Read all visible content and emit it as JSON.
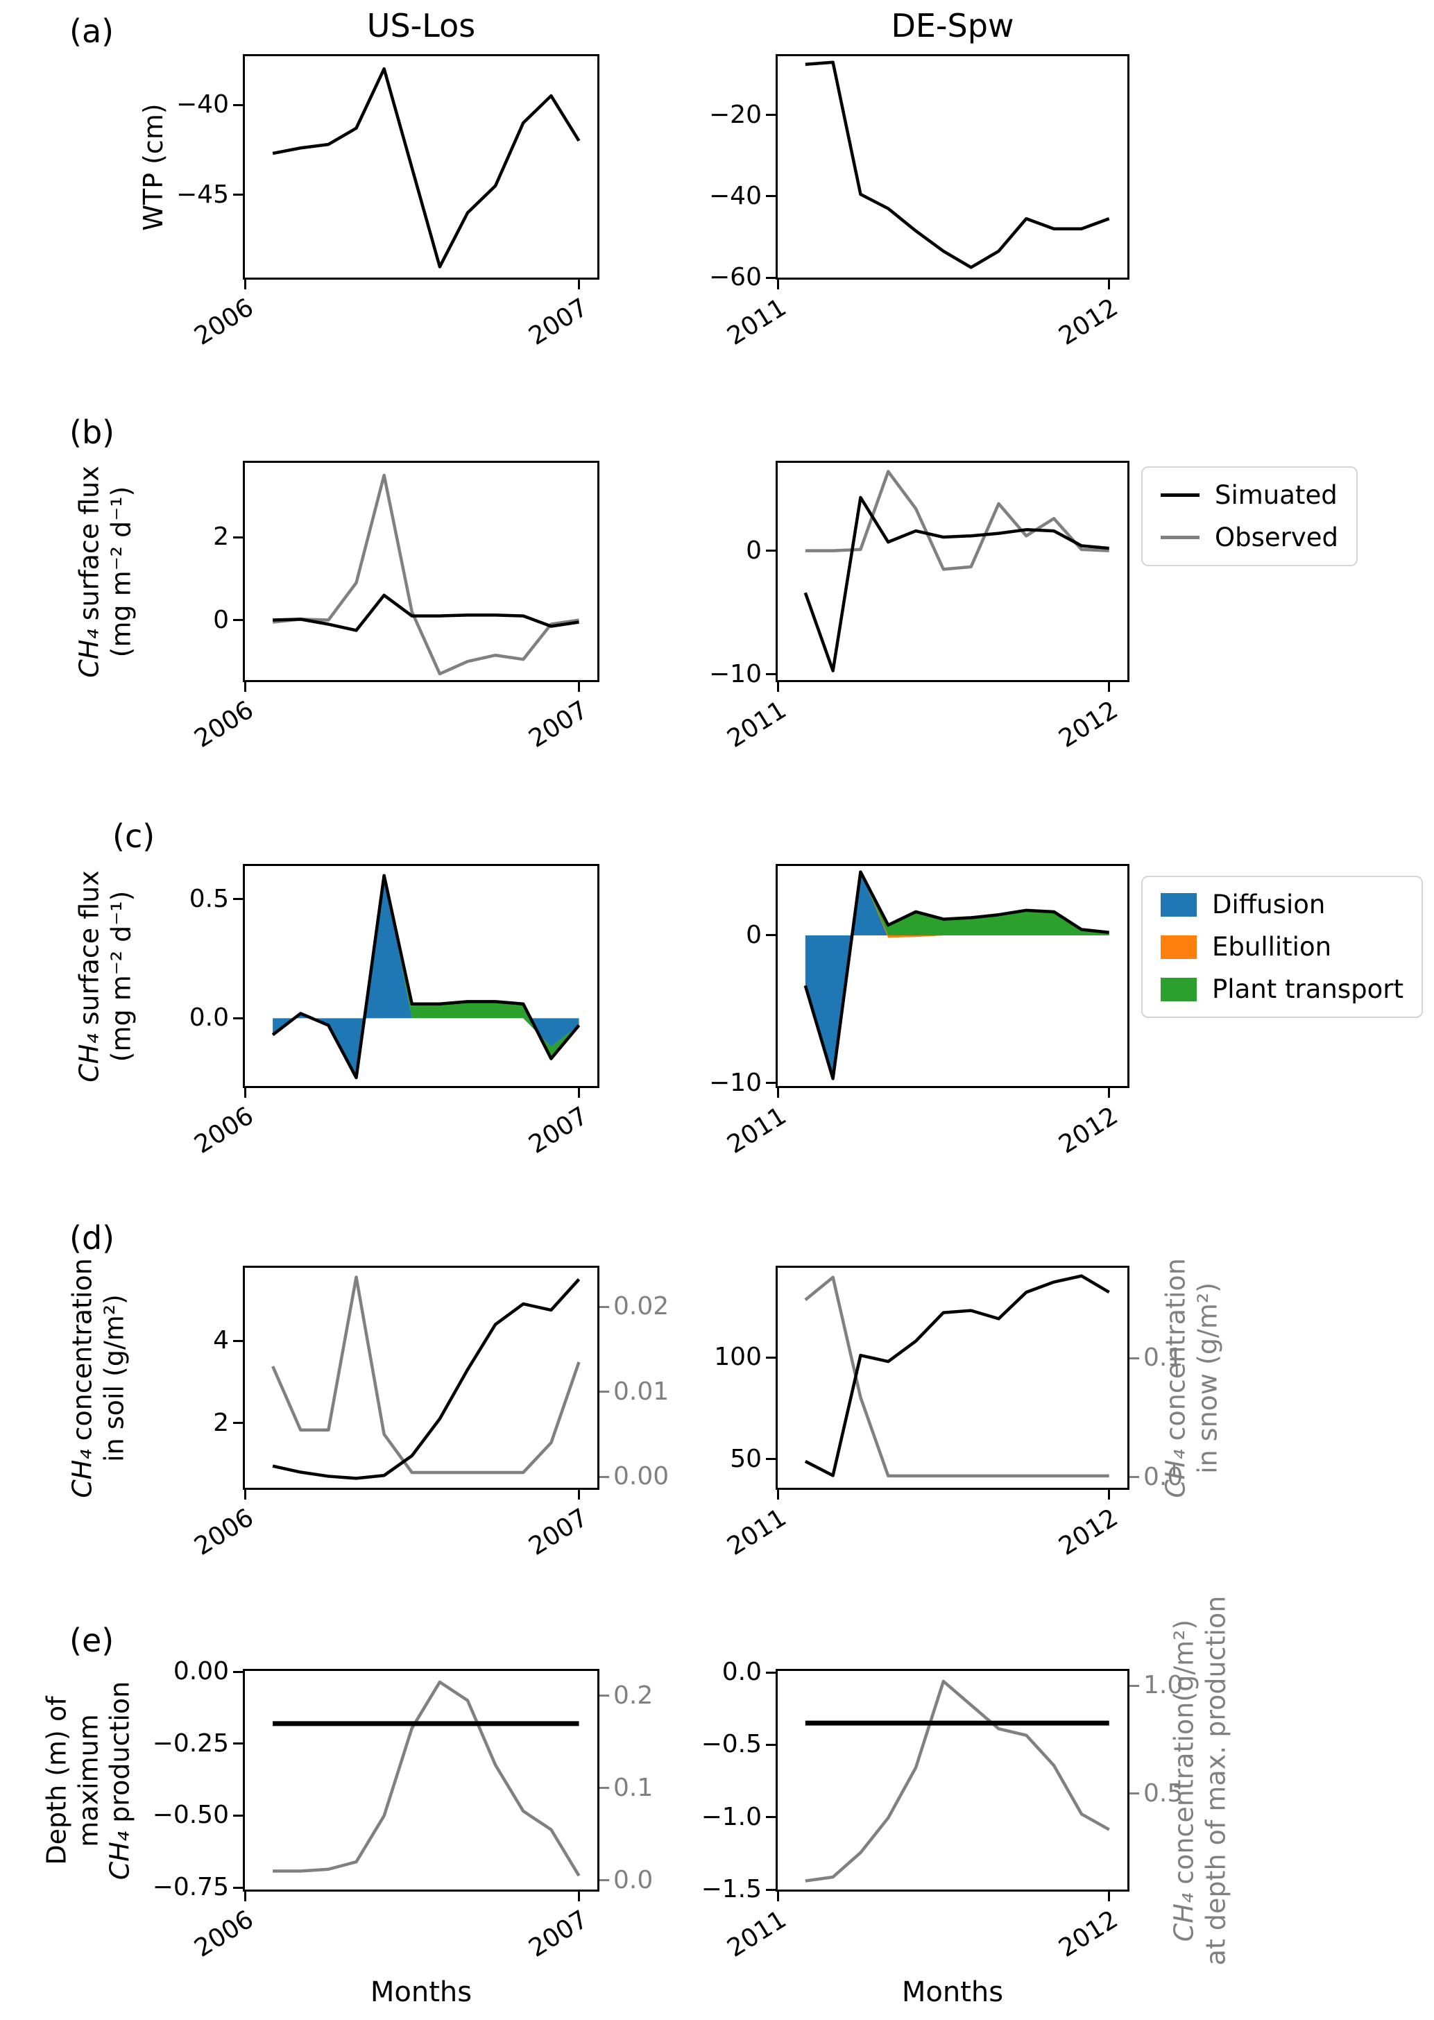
{
  "figure": {
    "column_titles": [
      "US-Los",
      "DE-Spw"
    ],
    "panel_letters": [
      "(a)",
      "(b)",
      "(c)",
      "(d)",
      "(e)"
    ],
    "xlabel": "Months",
    "colors": {
      "black": "#000000",
      "gray": "#808080",
      "diffusion_blue": "#1f77b4",
      "ebullition_orange": "#ff7f0e",
      "plant_green": "#2ca02c"
    },
    "legend_flux": [
      {
        "label": "Simuated",
        "color": "#000000"
      },
      {
        "label": "Observed",
        "color": "#808080"
      }
    ],
    "legend_components": [
      {
        "label": "Diffusion",
        "color": "#1f77b4"
      },
      {
        "label": "Ebullition",
        "color": "#ff7f0e"
      },
      {
        "label": "Plant transport",
        "color": "#2ca02c"
      }
    ]
  },
  "chart_data": [
    {
      "id": "a_us",
      "row": "a",
      "col": "left",
      "site": "US-Los",
      "type": "line",
      "x": [
        1,
        2,
        3,
        4,
        5,
        6,
        7,
        8,
        9,
        10,
        11,
        12
      ],
      "xlim": [
        0,
        12.66
      ],
      "xticks": [
        {
          "v": 0,
          "label": "2006"
        },
        {
          "v": 12,
          "label": "2007"
        }
      ],
      "left_axis": {
        "lim": [
          -49.6,
          -37.3
        ],
        "ticks": [
          {
            "v": -40,
            "label": "−40"
          },
          {
            "v": -45,
            "label": "−45"
          }
        ],
        "label_lines": [
          "WTP (cm)"
        ]
      },
      "series": [
        {
          "name": "WTP",
          "axis": "left",
          "color": "#000000",
          "width": 4.5,
          "values": [
            -42.7,
            -42.4,
            -42.2,
            -41.3,
            -38.0,
            -43.5,
            -49.0,
            -46.0,
            -44.5,
            -41.0,
            -39.5,
            -42.0
          ]
        }
      ]
    },
    {
      "id": "a_de",
      "row": "a",
      "col": "right",
      "site": "DE-Spw",
      "type": "line",
      "x": [
        1,
        2,
        3,
        4,
        5,
        6,
        7,
        8,
        9,
        10,
        11,
        12
      ],
      "xlim": [
        0,
        12.66
      ],
      "xticks": [
        {
          "v": 0,
          "label": "2011"
        },
        {
          "v": 12,
          "label": "2012"
        }
      ],
      "left_axis": {
        "lim": [
          -60.0,
          -5.5
        ],
        "ticks": [
          {
            "v": -20,
            "label": "−20"
          },
          {
            "v": -40,
            "label": "−40"
          },
          {
            "v": -60,
            "label": "−60"
          }
        ],
        "label_lines": []
      },
      "series": [
        {
          "name": "WTP",
          "axis": "left",
          "color": "#000000",
          "width": 4.5,
          "values": [
            -7.5,
            -7.0,
            -39.5,
            -43.0,
            -48.5,
            -53.5,
            -57.5,
            -53.5,
            -45.5,
            -48.0,
            -48.0,
            -45.5
          ]
        }
      ]
    },
    {
      "id": "b_us",
      "row": "b",
      "col": "left",
      "site": "US-Los",
      "type": "line",
      "x": [
        1,
        2,
        3,
        4,
        5,
        6,
        7,
        8,
        9,
        10,
        11,
        12
      ],
      "xlim": [
        0,
        12.66
      ],
      "xticks": [
        {
          "v": 0,
          "label": "2006"
        },
        {
          "v": 12,
          "label": "2007"
        }
      ],
      "left_axis": {
        "lim": [
          -1.45,
          3.8
        ],
        "ticks": [
          {
            "v": 2,
            "label": "2"
          },
          {
            "v": 0,
            "label": "0"
          }
        ],
        "label_lines": [
          "CH₄ surface flux",
          "(mg m⁻² d⁻¹)"
        ]
      },
      "series": [
        {
          "name": "Observed",
          "axis": "left",
          "color": "#808080",
          "width": 4.5,
          "values": [
            -0.05,
            0.02,
            0.0,
            0.9,
            3.5,
            0.2,
            -1.3,
            -1.0,
            -0.85,
            -0.95,
            -0.1,
            0.0
          ]
        },
        {
          "name": "Simuated",
          "axis": "left",
          "color": "#000000",
          "width": 4.5,
          "values": [
            0.0,
            0.02,
            -0.1,
            -0.25,
            0.6,
            0.1,
            0.1,
            0.12,
            0.12,
            0.1,
            -0.15,
            -0.05
          ]
        }
      ]
    },
    {
      "id": "b_de",
      "row": "b",
      "col": "right",
      "site": "DE-Spw",
      "type": "line",
      "x": [
        1,
        2,
        3,
        4,
        5,
        6,
        7,
        8,
        9,
        10,
        11,
        12
      ],
      "xlim": [
        0,
        12.66
      ],
      "xticks": [
        {
          "v": 0,
          "label": "2011"
        },
        {
          "v": 12,
          "label": "2012"
        }
      ],
      "left_axis": {
        "lim": [
          -10.45,
          7.1
        ],
        "ticks": [
          {
            "v": 0,
            "label": "0"
          },
          {
            "v": -10,
            "label": "−10"
          }
        ],
        "label_lines": []
      },
      "series": [
        {
          "name": "Observed",
          "axis": "left",
          "color": "#808080",
          "width": 4.5,
          "values": [
            0.0,
            0.0,
            0.1,
            6.4,
            3.4,
            -1.5,
            -1.3,
            3.8,
            1.2,
            2.6,
            0.1,
            0.0
          ]
        },
        {
          "name": "Simuated",
          "axis": "left",
          "color": "#000000",
          "width": 4.5,
          "values": [
            -3.4,
            -9.7,
            4.3,
            0.7,
            1.6,
            1.1,
            1.2,
            1.4,
            1.7,
            1.6,
            0.4,
            0.2
          ]
        }
      ]
    },
    {
      "id": "c_us",
      "row": "c",
      "col": "left",
      "site": "US-Los",
      "type": "stacked-area",
      "x": [
        1,
        2,
        3,
        4,
        5,
        6,
        7,
        8,
        9,
        10,
        11,
        12
      ],
      "xlim": [
        0,
        12.66
      ],
      "xticks": [
        {
          "v": 0,
          "label": "2006"
        },
        {
          "v": 12,
          "label": "2007"
        }
      ],
      "left_axis": {
        "lim": [
          -0.285,
          0.64
        ],
        "ticks": [
          {
            "v": 0.5,
            "label": "0.5"
          },
          {
            "v": 0.0,
            "label": "0.0"
          }
        ],
        "label_lines": [
          "CH₄ surface flux",
          "(mg m⁻² d⁻¹)"
        ]
      },
      "stack": [
        {
          "name": "Diffusion",
          "color": "#1f77b4",
          "values": [
            -0.07,
            0.02,
            -0.03,
            -0.25,
            0.6,
            0.0,
            0.0,
            0.0,
            0.0,
            0.0,
            -0.12,
            -0.03
          ]
        },
        {
          "name": "Ebullition",
          "color": "#ff7f0e",
          "values": [
            0,
            0,
            0,
            0,
            0,
            0,
            0,
            0,
            0,
            0,
            0,
            0
          ]
        },
        {
          "name": "Plant transport",
          "color": "#2ca02c",
          "values": [
            0,
            0,
            0,
            0,
            0,
            0.06,
            0.06,
            0.07,
            0.07,
            0.06,
            -0.05,
            0
          ]
        }
      ],
      "series": [
        {
          "name": "Total flux",
          "axis": "left",
          "color": "#000000",
          "width": 4.5,
          "values": [
            -0.07,
            0.02,
            -0.03,
            -0.25,
            0.6,
            0.06,
            0.06,
            0.07,
            0.07,
            0.06,
            -0.17,
            -0.03
          ]
        }
      ]
    },
    {
      "id": "c_de",
      "row": "c",
      "col": "right",
      "site": "DE-Spw",
      "type": "stacked-area",
      "x": [
        1,
        2,
        3,
        4,
        5,
        6,
        7,
        8,
        9,
        10,
        11,
        12
      ],
      "xlim": [
        0,
        12.66
      ],
      "xticks": [
        {
          "v": 0,
          "label": "2011"
        },
        {
          "v": 12,
          "label": "2012"
        }
      ],
      "left_axis": {
        "lim": [
          -10.2,
          4.7
        ],
        "ticks": [
          {
            "v": 0,
            "label": "0"
          },
          {
            "v": -10,
            "label": "−10"
          }
        ],
        "label_lines": []
      },
      "stack": [
        {
          "name": "Diffusion",
          "color": "#1f77b4",
          "values": [
            -3.4,
            -9.7,
            4.3,
            0,
            0,
            0,
            0,
            0,
            0,
            0,
            0,
            0
          ]
        },
        {
          "name": "Ebullition",
          "color": "#ff7f0e",
          "values": [
            0,
            0,
            0,
            -0.15,
            -0.1,
            0,
            0,
            0,
            0,
            0,
            0,
            0
          ]
        },
        {
          "name": "Plant transport",
          "color": "#2ca02c",
          "values": [
            0,
            0,
            0,
            0.85,
            1.7,
            1.1,
            1.2,
            1.4,
            1.7,
            1.6,
            0.4,
            0.2
          ]
        }
      ],
      "series": [
        {
          "name": "Total flux",
          "axis": "left",
          "color": "#000000",
          "width": 4.5,
          "values": [
            -3.4,
            -9.7,
            4.3,
            0.7,
            1.6,
            1.1,
            1.2,
            1.4,
            1.7,
            1.6,
            0.4,
            0.2
          ]
        }
      ]
    },
    {
      "id": "d_us",
      "row": "d",
      "col": "left",
      "site": "US-Los",
      "type": "line-twin-axis",
      "x": [
        1,
        2,
        3,
        4,
        5,
        6,
        7,
        8,
        9,
        10,
        11,
        12
      ],
      "xlim": [
        0,
        12.66
      ],
      "xticks": [
        {
          "v": 0,
          "label": "2006"
        },
        {
          "v": 12,
          "label": "2007"
        }
      ],
      "left_axis": {
        "lim": [
          0.42,
          5.78
        ],
        "ticks": [
          {
            "v": 4,
            "label": "4"
          },
          {
            "v": 2,
            "label": "2"
          }
        ],
        "label_lines": [
          "CH₄ concentration",
          "in soil (g/m²)"
        ]
      },
      "right_axis": {
        "lim": [
          -0.0013,
          0.0246
        ],
        "ticks": [
          {
            "v": 0.02,
            "label": "0.02"
          },
          {
            "v": 0.01,
            "label": "0.01"
          },
          {
            "v": 0.0,
            "label": "0.00"
          }
        ],
        "label_lines": []
      },
      "series": [
        {
          "name": "CH4 in snow",
          "axis": "right",
          "color": "#808080",
          "width": 4.5,
          "values": [
            0.013,
            0.0055,
            0.0055,
            0.0235,
            0.005,
            0.0005,
            0.0005,
            0.0005,
            0.0005,
            0.0005,
            0.004,
            0.0135
          ]
        },
        {
          "name": "CH4 in soil",
          "axis": "left",
          "color": "#000000",
          "width": 4.5,
          "values": [
            0.95,
            0.8,
            0.7,
            0.65,
            0.72,
            1.2,
            2.1,
            3.3,
            4.4,
            4.9,
            4.75,
            5.5
          ]
        }
      ]
    },
    {
      "id": "d_de",
      "row": "d",
      "col": "right",
      "site": "DE-Spw",
      "type": "line-twin-axis",
      "x": [
        1,
        2,
        3,
        4,
        5,
        6,
        7,
        8,
        9,
        10,
        11,
        12
      ],
      "xlim": [
        0,
        12.66
      ],
      "xticks": [
        {
          "v": 0,
          "label": "2011"
        },
        {
          "v": 12,
          "label": "2012"
        }
      ],
      "left_axis": {
        "lim": [
          36,
          144
        ],
        "ticks": [
          {
            "v": 100,
            "label": "100"
          },
          {
            "v": 50,
            "label": "50"
          }
        ],
        "label_lines": []
      },
      "right_axis": {
        "lim": [
          -0.009,
          0.176
        ],
        "ticks": [
          {
            "v": 0.1,
            "label": "0.1"
          },
          {
            "v": 0.0,
            "label": "0.0"
          }
        ],
        "label_lines": [
          "CH₄ concentration",
          "in snow (g/m²)"
        ]
      },
      "series": [
        {
          "name": "CH4 in snow",
          "axis": "right",
          "color": "#808080",
          "width": 4.5,
          "values": [
            0.149,
            0.168,
            0.067,
            0.001,
            0.001,
            0.001,
            0.001,
            0.001,
            0.001,
            0.001,
            0.001,
            0.001
          ]
        },
        {
          "name": "CH4 in soil",
          "axis": "left",
          "color": "#000000",
          "width": 4.5,
          "values": [
            49,
            42,
            101,
            98,
            108,
            122,
            123,
            119,
            132,
            137,
            140,
            132
          ]
        }
      ]
    },
    {
      "id": "e_us",
      "row": "e",
      "col": "left",
      "site": "US-Los",
      "type": "line-twin-axis",
      "x": [
        1,
        2,
        3,
        4,
        5,
        6,
        7,
        8,
        9,
        10,
        11,
        12
      ],
      "xlim": [
        0,
        12.66
      ],
      "xticks": [
        {
          "v": 0,
          "label": "2006"
        },
        {
          "v": 12,
          "label": "2007"
        }
      ],
      "left_axis": {
        "lim": [
          -0.757,
          0.003
        ],
        "ticks": [
          {
            "v": 0.0,
            "label": "0.00"
          },
          {
            "v": -0.25,
            "label": "−0.25"
          },
          {
            "v": -0.5,
            "label": "−0.50"
          },
          {
            "v": -0.75,
            "label": "−0.75"
          }
        ],
        "label_lines": [
          "Depth (m) of",
          "maximum",
          "CH₄ production"
        ]
      },
      "right_axis": {
        "lim": [
          -0.01,
          0.227
        ],
        "ticks": [
          {
            "v": 0.2,
            "label": "0.2"
          },
          {
            "v": 0.1,
            "label": "0.1"
          },
          {
            "v": 0.0,
            "label": "0.0"
          }
        ],
        "label_lines": []
      },
      "series": [
        {
          "name": "CH4 at depth of max production",
          "axis": "right",
          "color": "#808080",
          "width": 4.5,
          "values": [
            0.01,
            0.01,
            0.012,
            0.02,
            0.07,
            0.165,
            0.215,
            0.195,
            0.125,
            0.075,
            0.055,
            0.005
          ]
        },
        {
          "name": "Depth of max production",
          "axis": "left",
          "color": "#000000",
          "width": 7,
          "values": [
            -0.18,
            -0.18,
            -0.18,
            -0.18,
            -0.18,
            -0.18,
            -0.18,
            -0.18,
            -0.18,
            -0.18,
            -0.18,
            -0.18
          ]
        }
      ]
    },
    {
      "id": "e_de",
      "row": "e",
      "col": "right",
      "site": "DE-Spw",
      "type": "line-twin-axis",
      "x": [
        1,
        2,
        3,
        4,
        5,
        6,
        7,
        8,
        9,
        10,
        11,
        12
      ],
      "xlim": [
        0,
        12.66
      ],
      "xticks": [
        {
          "v": 0,
          "label": "2011"
        },
        {
          "v": 12,
          "label": "2012"
        }
      ],
      "left_axis": {
        "lim": [
          -1.5,
          0.01
        ],
        "ticks": [
          {
            "v": 0.0,
            "label": "0.0"
          },
          {
            "v": -0.5,
            "label": "−0.5"
          },
          {
            "v": -1.0,
            "label": "−1.0"
          },
          {
            "v": -1.5,
            "label": "−1.5"
          }
        ],
        "label_lines": []
      },
      "right_axis": {
        "lim": [
          0.055,
          1.068
        ],
        "ticks": [
          {
            "v": 1.0,
            "label": "1.0"
          },
          {
            "v": 0.5,
            "label": "0.5"
          }
        ],
        "label_lines": [
          "CH₄ concentration(g/m²)",
          "at depth of max. production"
        ]
      },
      "series": [
        {
          "name": "CH4 at depth of max production",
          "axis": "right",
          "color": "#808080",
          "width": 4.5,
          "values": [
            0.095,
            0.113,
            0.226,
            0.387,
            0.62,
            1.02,
            0.91,
            0.8,
            0.77,
            0.63,
            0.405,
            0.333
          ]
        },
        {
          "name": "Depth of max production",
          "axis": "left",
          "color": "#000000",
          "width": 7,
          "values": [
            -0.35,
            -0.35,
            -0.35,
            -0.35,
            -0.35,
            -0.35,
            -0.35,
            -0.35,
            -0.35,
            -0.35,
            -0.35,
            -0.35
          ]
        }
      ]
    }
  ]
}
